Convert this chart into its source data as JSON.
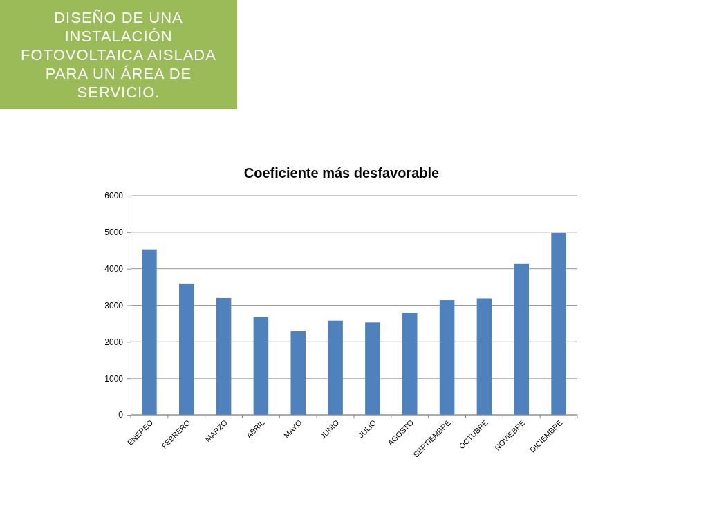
{
  "chart_data": {
    "type": "bar",
    "title": "Coeficiente más desfavorable",
    "annotations": [
      "DISEÑO DE UNA INSTALACIÓN FOTOVOLTAICA AISLADA PARA UN ÁREA DE SERVICIO."
    ],
    "categories": [
      "ENEREO",
      "FEBRERO",
      "MARZO",
      "ABRIL",
      "MAYO",
      "JUNIO",
      "JULIO",
      "AGOSTO",
      "SEPTIEMBRE",
      "OCTUBRE",
      "NOVIEBRE",
      "DICIEMBRE"
    ],
    "values": [
      4530,
      3580,
      3200,
      2680,
      2290,
      2580,
      2530,
      2800,
      3140,
      3190,
      4130,
      4980
    ],
    "color": "#4f81bd",
    "ylim": [
      0,
      6000
    ],
    "yticks": [
      0,
      1000,
      2000,
      3000,
      4000,
      5000,
      6000
    ],
    "grid": "y"
  }
}
